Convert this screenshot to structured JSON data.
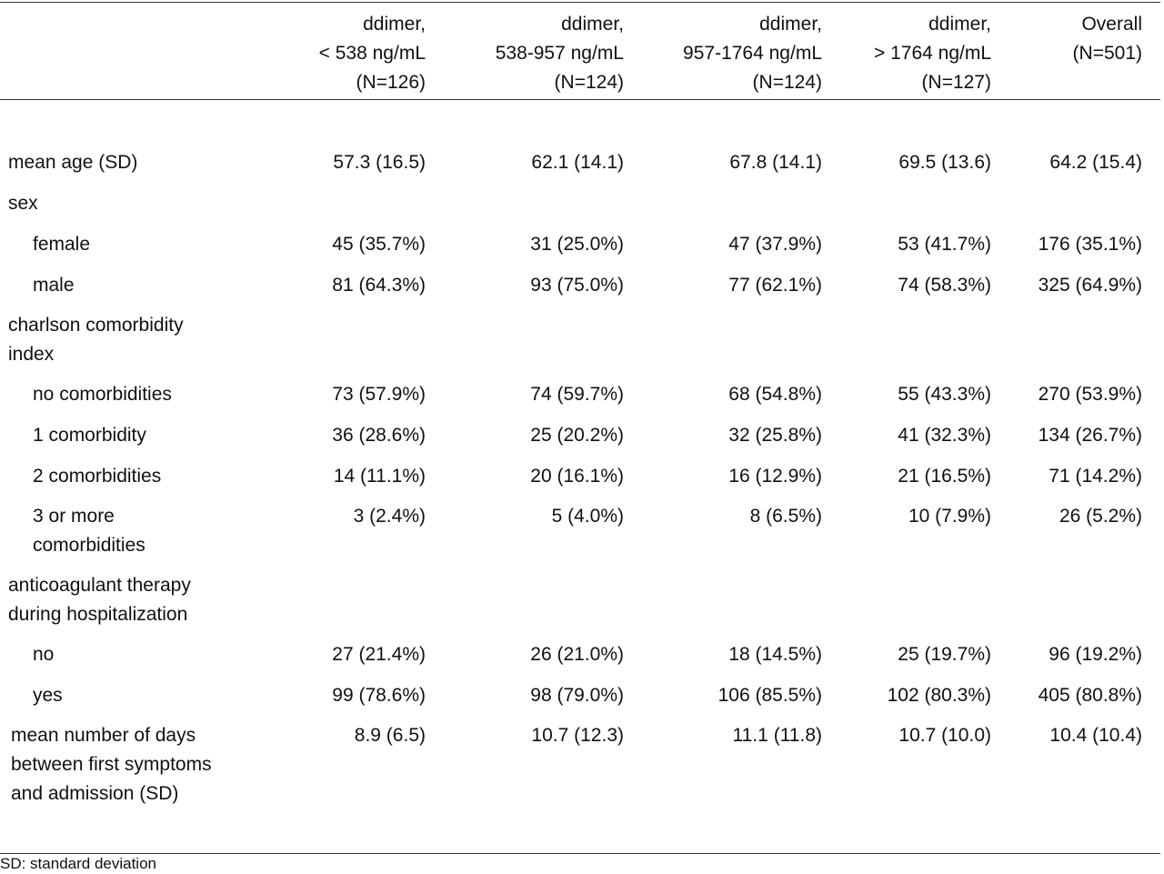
{
  "header": [
    [
      "ddimer,",
      "< 538 ng/mL",
      "(N=126)"
    ],
    [
      "ddimer,",
      "538-957 ng/mL",
      "(N=124)"
    ],
    [
      "ddimer,",
      "957-1764 ng/mL",
      "(N=124)"
    ],
    [
      "ddimer,",
      "> 1764 ng/mL",
      "(N=127)"
    ],
    [
      "Overall",
      "(N=501)"
    ]
  ],
  "rows": [
    {
      "label": [
        "mean age (SD)"
      ],
      "values": [
        "57.3 (16.5)",
        "62.1 (14.1)",
        "67.8 (14.1)",
        "69.5 (13.6)",
        "64.2 (15.4)"
      ]
    },
    {
      "label": [
        "sex"
      ],
      "values": []
    },
    {
      "label": [
        "female"
      ],
      "values": [
        "45 (35.7%)",
        "31 (25.0%)",
        "47 (37.9%)",
        "53 (41.7%)",
        "176 (35.1%)"
      ]
    },
    {
      "label": [
        "male"
      ],
      "values": [
        "81 (64.3%)",
        "93 (75.0%)",
        "77 (62.1%)",
        "74 (58.3%)",
        "325 (64.9%)"
      ]
    },
    {
      "label": [
        "charlson comorbidity",
        "index"
      ],
      "values": []
    },
    {
      "label": [
        "no comorbidities"
      ],
      "values": [
        "73 (57.9%)",
        "74 (59.7%)",
        "68 (54.8%)",
        "55 (43.3%)",
        "270 (53.9%)"
      ]
    },
    {
      "label": [
        "1 comorbidity"
      ],
      "values": [
        "36 (28.6%)",
        "25 (20.2%)",
        "32 (25.8%)",
        "41 (32.3%)",
        "134 (26.7%)"
      ]
    },
    {
      "label": [
        "2 comorbidities"
      ],
      "values": [
        "14 (11.1%)",
        "20 (16.1%)",
        "16 (12.9%)",
        "21 (16.5%)",
        "71 (14.2%)"
      ]
    },
    {
      "label": [
        "3 or more",
        "comorbidities"
      ],
      "values": [
        "3 (2.4%)",
        "5 (4.0%)",
        "8 (6.5%)",
        "10 (7.9%)",
        "26 (5.2%)"
      ]
    },
    {
      "label": [
        "anticoagulant therapy",
        "during hospitalization"
      ],
      "values": []
    },
    {
      "label": [
        "no"
      ],
      "values": [
        "27 (21.4%)",
        "26 (21.0%)",
        "18 (14.5%)",
        "25 (19.7%)",
        "96 (19.2%)"
      ]
    },
    {
      "label": [
        "yes"
      ],
      "values": [
        "99 (78.6%)",
        "98 (79.0%)",
        "106 (85.5%)",
        "102 (80.3%)",
        "405 (80.8%)"
      ]
    },
    {
      "label": [
        "mean number of days",
        "between first symptoms",
        "and admission (SD)"
      ],
      "values": [
        "8.9 (6.5)",
        "10.7 (12.3)",
        "11.1 (11.8)",
        "10.7 (10.0)",
        "10.4 (10.4)"
      ]
    }
  ],
  "footnote": "SD: standard deviation"
}
